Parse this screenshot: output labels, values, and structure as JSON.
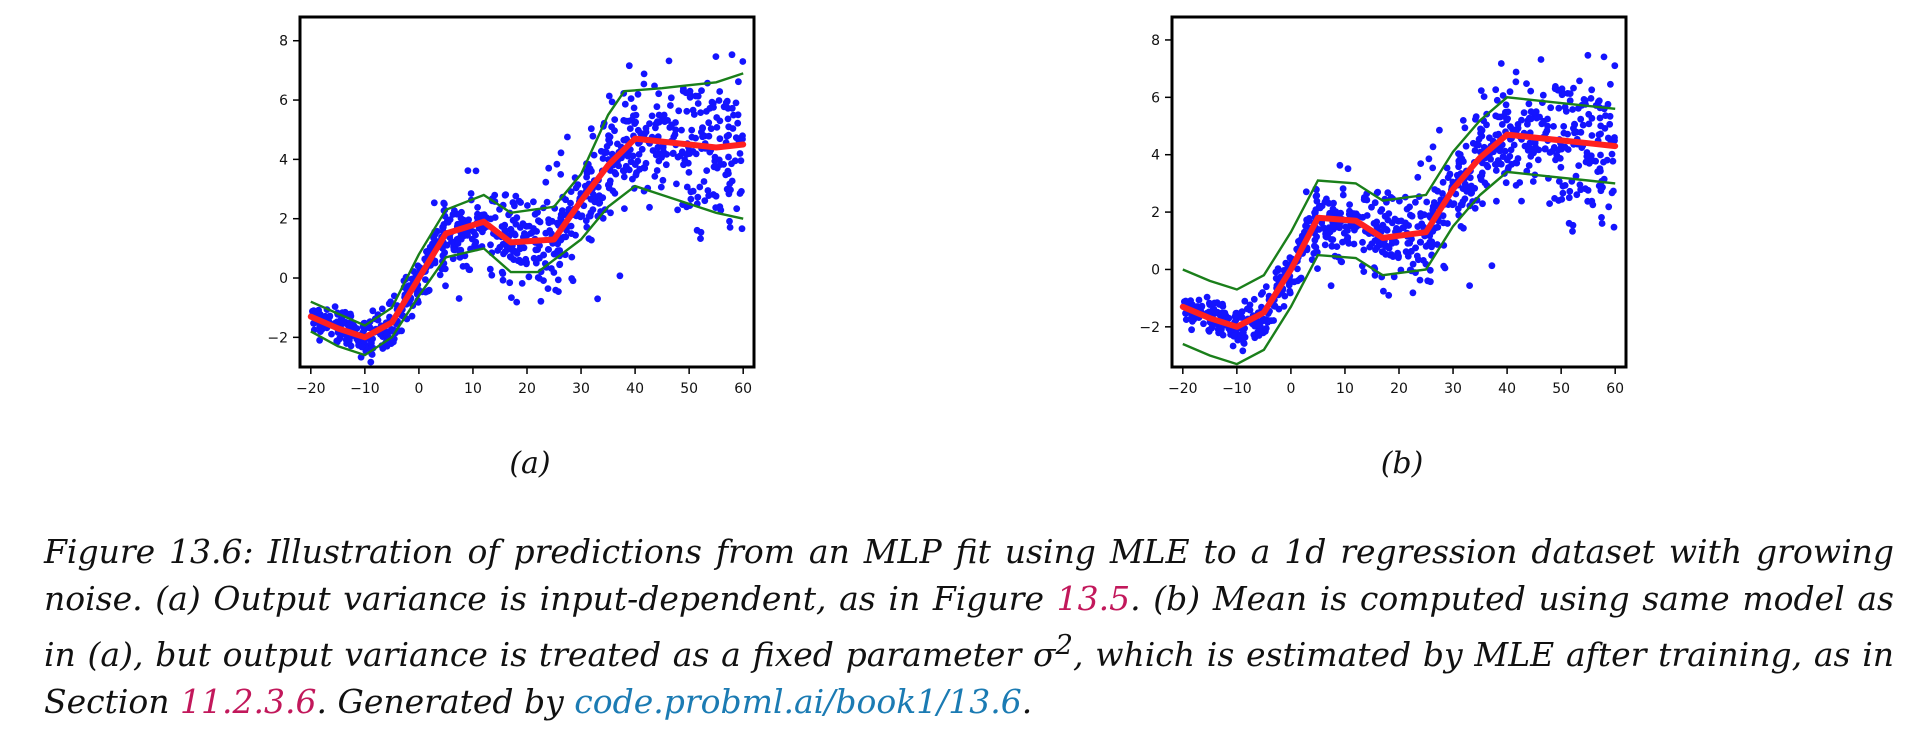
{
  "figure_caption": {
    "part1": "Figure 13.6: Illustration of predictions from an MLP fit using MLE to a 1d regression dataset with growing noise. (a) Output variance is input-dependent, as in Figure ",
    "figure_ref": "13.5",
    "part2": ". (b) Mean is computed using same model as in (a), but output variance is treated as a fixed parameter σ",
    "sup": "2",
    "part3": ", which is estimated by MLE after training, as in Section ",
    "section_ref": "11.2.3.6",
    "part4": ". Generated by ",
    "url": "code.probml.ai/book1/13.6",
    "part5": "."
  },
  "chart_data": [
    {
      "type": "line",
      "panel_label": "(a)",
      "xlim": [
        -22,
        62
      ],
      "ylim": [
        -3.0,
        8.8
      ],
      "xticks": [
        -20,
        -10,
        0,
        10,
        20,
        30,
        40,
        50,
        60
      ],
      "yticks": [
        -2,
        0,
        2,
        4,
        6,
        8
      ],
      "xtick_labels": [
        "−20",
        "−10",
        "0",
        "10",
        "20",
        "30",
        "40",
        "50",
        "60"
      ],
      "ytick_labels": [
        "−2",
        "0",
        "2",
        "4",
        "6",
        "8"
      ],
      "colors": {
        "scatter": "#1414ff",
        "mean": "#ff2020",
        "bounds": "#1a7f1a"
      },
      "mean": {
        "x": [
          -20,
          -15,
          -10,
          -5,
          0,
          5,
          12,
          17,
          25,
          30,
          35,
          40,
          45,
          50,
          55,
          60
        ],
        "y": [
          -1.3,
          -1.7,
          -2.0,
          -1.5,
          0.0,
          1.5,
          1.9,
          1.2,
          1.3,
          2.6,
          3.8,
          4.7,
          4.6,
          4.5,
          4.4,
          4.5
        ]
      },
      "upper_bound": {
        "x": [
          -20,
          -15,
          -10,
          -5,
          0,
          5,
          12,
          17,
          25,
          30,
          35,
          38,
          45,
          50,
          55,
          60
        ],
        "y": [
          -0.8,
          -1.2,
          -1.6,
          -1.0,
          0.8,
          2.3,
          2.8,
          2.2,
          2.4,
          3.5,
          5.5,
          6.3,
          6.4,
          6.5,
          6.6,
          6.9
        ]
      },
      "lower_bound": {
        "x": [
          -20,
          -15,
          -10,
          -5,
          0,
          5,
          12,
          17,
          22,
          30,
          35,
          40,
          45,
          50,
          55,
          60
        ],
        "y": [
          -1.8,
          -2.3,
          -2.6,
          -2.0,
          -0.6,
          0.7,
          1.0,
          0.2,
          0.2,
          1.3,
          2.4,
          3.1,
          2.8,
          2.5,
          2.2,
          2.0
        ]
      },
      "scatter_description": "~900 noisy points following the mean curve with noise growing in x"
    },
    {
      "type": "line",
      "panel_label": "(b)",
      "xlim": [
        -22,
        62
      ],
      "ylim": [
        -3.4,
        8.8
      ],
      "xticks": [
        -20,
        -10,
        0,
        10,
        20,
        30,
        40,
        50,
        60
      ],
      "yticks": [
        -2,
        0,
        2,
        4,
        6,
        8
      ],
      "xtick_labels": [
        "−20",
        "−10",
        "0",
        "10",
        "20",
        "30",
        "40",
        "50",
        "60"
      ],
      "ytick_labels": [
        "−2",
        "0",
        "2",
        "4",
        "6",
        "8"
      ],
      "colors": {
        "scatter": "#1414ff",
        "mean": "#ff2020",
        "bounds": "#1a7f1a"
      },
      "mean": {
        "x": [
          -20,
          -15,
          -10,
          -5,
          0,
          5,
          12,
          17,
          25,
          30,
          35,
          40,
          45,
          50,
          55,
          60
        ],
        "y": [
          -1.3,
          -1.7,
          -2.0,
          -1.5,
          0.0,
          1.8,
          1.7,
          1.1,
          1.3,
          2.8,
          3.9,
          4.7,
          4.6,
          4.5,
          4.4,
          4.3
        ]
      },
      "upper_bound": {
        "x": [
          -20,
          -15,
          -10,
          -5,
          0,
          5,
          12,
          17,
          25,
          30,
          35,
          40,
          45,
          50,
          55,
          60
        ],
        "y": [
          0.0,
          -0.4,
          -0.7,
          -0.2,
          1.3,
          3.1,
          3.0,
          2.4,
          2.6,
          4.1,
          5.2,
          6.0,
          5.9,
          5.8,
          5.7,
          5.6
        ]
      },
      "lower_bound": {
        "x": [
          -20,
          -15,
          -10,
          -5,
          0,
          5,
          12,
          17,
          25,
          30,
          35,
          40,
          45,
          50,
          55,
          60
        ],
        "y": [
          -2.6,
          -3.0,
          -3.3,
          -2.8,
          -1.3,
          0.5,
          0.4,
          -0.2,
          0.0,
          1.5,
          2.6,
          3.4,
          3.3,
          3.2,
          3.1,
          3.0
        ]
      },
      "scatter_description": "~900 noisy points following the mean curve with noise growing in x"
    }
  ]
}
